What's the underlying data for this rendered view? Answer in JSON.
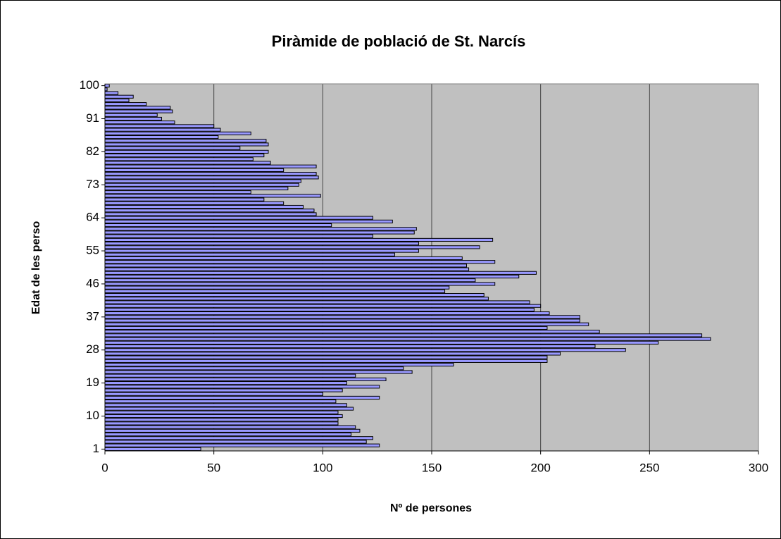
{
  "chart_data": {
    "type": "hbar",
    "title": "Piràmide de població de St. Narcís",
    "x_label": "Nº de persones",
    "y_label": "Edat de les perso",
    "categories": [
      "1",
      null,
      null,
      null,
      null,
      null,
      null,
      null,
      null,
      "10",
      null,
      null,
      null,
      null,
      null,
      null,
      null,
      null,
      "19",
      null,
      null,
      null,
      null,
      null,
      null,
      null,
      null,
      "28",
      null,
      null,
      null,
      null,
      null,
      null,
      null,
      null,
      "37",
      null,
      null,
      null,
      null,
      null,
      null,
      null,
      null,
      "46",
      null,
      null,
      null,
      null,
      null,
      null,
      null,
      null,
      "55",
      null,
      null,
      null,
      null,
      null,
      null,
      null,
      null,
      "64",
      null,
      null,
      null,
      null,
      null,
      null,
      null,
      null,
      "73",
      null,
      null,
      null,
      null,
      null,
      null,
      null,
      null,
      "82",
      null,
      null,
      null,
      null,
      null,
      null,
      null,
      null,
      "91",
      null,
      null,
      null,
      null,
      null,
      null,
      null,
      null,
      "100"
    ],
    "values": [
      44,
      126,
      120,
      123,
      113,
      117,
      115,
      107,
      107,
      109,
      107,
      114,
      111,
      106,
      126,
      100,
      109,
      126,
      111,
      129,
      115,
      141,
      137,
      160,
      203,
      203,
      209,
      239,
      225,
      254,
      278,
      274,
      227,
      203,
      222,
      218,
      218,
      204,
      197,
      200,
      195,
      176,
      174,
      156,
      158,
      179,
      170,
      190,
      198,
      167,
      166,
      179,
      164,
      133,
      144,
      172,
      144,
      178,
      123,
      142,
      143,
      104,
      132,
      123,
      97,
      96,
      91,
      82,
      73,
      99,
      67,
      84,
      89,
      90,
      98,
      97,
      82,
      97,
      76,
      68,
      73,
      75,
      62,
      75,
      74,
      52,
      67,
      53,
      50,
      32,
      26,
      24,
      31,
      30,
      19,
      11,
      13,
      6,
      1,
      2
    ],
    "color": "#9999ff",
    "xlim": [
      0,
      300
    ],
    "xticks": [
      0,
      50,
      100,
      150,
      200,
      250,
      300
    ],
    "grid": true
  }
}
